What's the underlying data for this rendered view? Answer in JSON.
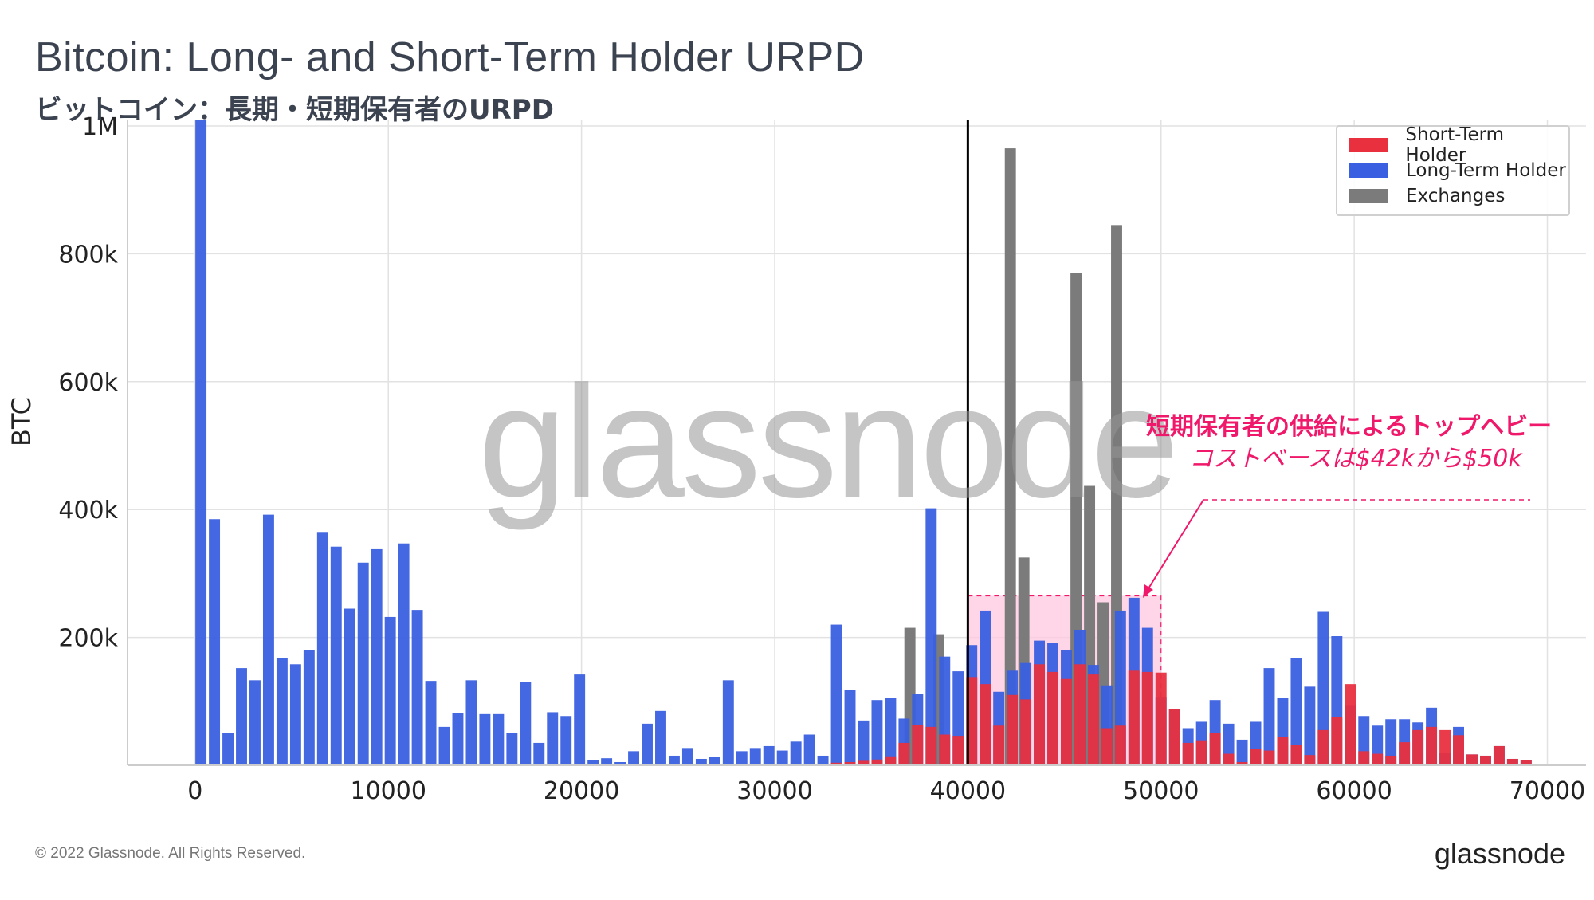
{
  "title": "Bitcoin: Long- and Short-Term Holder URPD",
  "subtitle": "ビットコイン：長期・短期保有者のURPD",
  "footer": "© 2022 Glassnode. All Rights Reserved.",
  "brand": "glassnode",
  "watermark": "glassnode",
  "annotation": {
    "line1": "短期保有者の供給によるトップヘビー",
    "line2": "コストベースは$42kから$50k",
    "color": "#f0186a",
    "highlight_range": [
      40000,
      50000
    ]
  },
  "colors": {
    "short_term": "#e8303f",
    "long_term": "#3a5fe0",
    "exchanges": "#7b7b7b",
    "highlight": "#ffc8e0"
  },
  "chart_data": {
    "type": "bar",
    "title": "Bitcoin: Long- and Short-Term Holder URPD",
    "xlabel": "",
    "ylabel": "BTC",
    "xlim": [
      -3500,
      72000
    ],
    "ylim": [
      0,
      1010000
    ],
    "xticks": [
      0,
      10000,
      20000,
      30000,
      40000,
      50000,
      60000,
      70000
    ],
    "xtick_labels": [
      "0",
      "10000",
      "20000",
      "30000",
      "40000",
      "50000",
      "60000",
      "70000"
    ],
    "yticks": [
      200000,
      400000,
      600000,
      800000,
      1000000
    ],
    "ytick_labels": [
      "200k",
      "400k",
      "600k",
      "800k",
      "1M"
    ],
    "grid": true,
    "legend_position": "top-right",
    "bin_width": 700,
    "vertical_line_x": 40000,
    "series": [
      {
        "name": "Exchanges",
        "points": [
          [
            37000,
            215000
          ],
          [
            38500,
            205000
          ],
          [
            42200,
            965000
          ],
          [
            42900,
            325000
          ],
          [
            45600,
            770000
          ],
          [
            46300,
            437000
          ],
          [
            47000,
            255000
          ],
          [
            47700,
            845000
          ]
        ]
      },
      {
        "name": "Long-Term Holder",
        "points": [
          [
            300,
            1010000
          ],
          [
            1000,
            385000
          ],
          [
            1700,
            50000
          ],
          [
            2400,
            152000
          ],
          [
            3100,
            133000
          ],
          [
            3800,
            392000
          ],
          [
            4500,
            168000
          ],
          [
            5200,
            158000
          ],
          [
            5900,
            180000
          ],
          [
            6600,
            365000
          ],
          [
            7300,
            342000
          ],
          [
            8000,
            245000
          ],
          [
            8700,
            317000
          ],
          [
            9400,
            338000
          ],
          [
            10100,
            232000
          ],
          [
            10800,
            347000
          ],
          [
            11500,
            243000
          ],
          [
            12200,
            132000
          ],
          [
            12900,
            60000
          ],
          [
            13600,
            82000
          ],
          [
            14300,
            133000
          ],
          [
            15000,
            80000
          ],
          [
            15700,
            80000
          ],
          [
            16400,
            50000
          ],
          [
            17100,
            130000
          ],
          [
            17800,
            35000
          ],
          [
            18500,
            83000
          ],
          [
            19200,
            77000
          ],
          [
            19900,
            142000
          ],
          [
            20600,
            8000
          ],
          [
            21300,
            11000
          ],
          [
            22000,
            5000
          ],
          [
            22700,
            22000
          ],
          [
            23400,
            65000
          ],
          [
            24100,
            85000
          ],
          [
            24800,
            15000
          ],
          [
            25500,
            27000
          ],
          [
            26200,
            10000
          ],
          [
            26900,
            13000
          ],
          [
            27600,
            133000
          ],
          [
            28300,
            22000
          ],
          [
            29000,
            27000
          ],
          [
            29700,
            30000
          ],
          [
            30400,
            23000
          ],
          [
            31100,
            37000
          ],
          [
            31800,
            48000
          ],
          [
            32500,
            15000
          ],
          [
            33200,
            220000
          ],
          [
            33900,
            118000
          ],
          [
            34600,
            70000
          ],
          [
            35300,
            102000
          ],
          [
            36000,
            105000
          ],
          [
            36700,
            73000
          ],
          [
            37400,
            112000
          ],
          [
            38100,
            402000
          ],
          [
            38800,
            170000
          ],
          [
            39500,
            147000
          ],
          [
            40200,
            188000
          ],
          [
            40900,
            242000
          ],
          [
            41600,
            115000
          ],
          [
            42300,
            148000
          ],
          [
            43000,
            160000
          ],
          [
            43700,
            195000
          ],
          [
            44400,
            192000
          ],
          [
            45100,
            180000
          ],
          [
            45800,
            212000
          ],
          [
            46500,
            157000
          ],
          [
            47200,
            125000
          ],
          [
            47900,
            242000
          ],
          [
            48600,
            262000
          ],
          [
            49300,
            215000
          ],
          [
            50000,
            107000
          ],
          [
            50700,
            88000
          ],
          [
            51400,
            58000
          ],
          [
            52100,
            68000
          ],
          [
            52800,
            102000
          ],
          [
            53500,
            65000
          ],
          [
            54200,
            40000
          ],
          [
            54900,
            68000
          ],
          [
            55600,
            152000
          ],
          [
            56300,
            105000
          ],
          [
            57000,
            168000
          ],
          [
            57700,
            123000
          ],
          [
            58400,
            240000
          ],
          [
            59100,
            202000
          ],
          [
            59800,
            93000
          ],
          [
            60500,
            77000
          ],
          [
            61200,
            62000
          ],
          [
            61900,
            72000
          ],
          [
            62600,
            72000
          ],
          [
            63300,
            67000
          ],
          [
            64000,
            90000
          ],
          [
            64700,
            20000
          ],
          [
            65400,
            60000
          ],
          [
            66100,
            17000
          ],
          [
            66800,
            15000
          ],
          [
            67500,
            30000
          ],
          [
            68200,
            10000
          ],
          [
            68900,
            8000
          ]
        ]
      },
      {
        "name": "Short-Term Holder",
        "points": [
          [
            33200,
            4000
          ],
          [
            33900,
            5000
          ],
          [
            34600,
            7000
          ],
          [
            35300,
            9000
          ],
          [
            36000,
            14000
          ],
          [
            36700,
            35000
          ],
          [
            37400,
            63000
          ],
          [
            38100,
            60000
          ],
          [
            38800,
            48000
          ],
          [
            39500,
            46000
          ],
          [
            40200,
            138000
          ],
          [
            40900,
            127000
          ],
          [
            41600,
            62000
          ],
          [
            42300,
            110000
          ],
          [
            43000,
            103000
          ],
          [
            43700,
            158000
          ],
          [
            44400,
            146000
          ],
          [
            45100,
            135000
          ],
          [
            45800,
            158000
          ],
          [
            46500,
            142000
          ],
          [
            47200,
            58000
          ],
          [
            47900,
            62000
          ],
          [
            48600,
            148000
          ],
          [
            49300,
            146000
          ],
          [
            50000,
            145000
          ],
          [
            50700,
            88000
          ],
          [
            51400,
            35000
          ],
          [
            52100,
            39000
          ],
          [
            52800,
            50000
          ],
          [
            53500,
            18000
          ],
          [
            54200,
            5000
          ],
          [
            54900,
            26000
          ],
          [
            55600,
            23000
          ],
          [
            56300,
            44000
          ],
          [
            57000,
            32000
          ],
          [
            57700,
            16000
          ],
          [
            58400,
            55000
          ],
          [
            59100,
            75000
          ],
          [
            59800,
            127000
          ],
          [
            60500,
            22000
          ],
          [
            61200,
            18000
          ],
          [
            61900,
            15000
          ],
          [
            62600,
            36000
          ],
          [
            63300,
            55000
          ],
          [
            64000,
            60000
          ],
          [
            64700,
            55000
          ],
          [
            65400,
            47000
          ],
          [
            66100,
            17000
          ],
          [
            66800,
            15000
          ],
          [
            67500,
            30000
          ],
          [
            68200,
            10000
          ],
          [
            68900,
            8000
          ]
        ]
      }
    ]
  }
}
